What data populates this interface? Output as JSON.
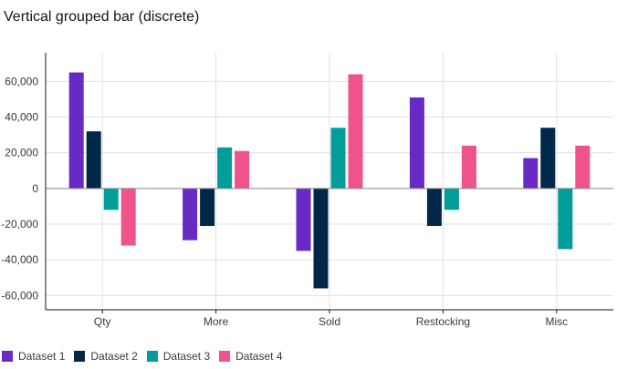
{
  "chart_data": {
    "type": "bar",
    "title": "Vertical grouped bar (discrete)",
    "categories": [
      "Qty",
      "More",
      "Sold",
      "Restocking",
      "Misc"
    ],
    "series": [
      {
        "name": "Dataset 1",
        "color": "#6929c4",
        "values": [
          65000,
          -29000,
          -35000,
          51000,
          17000
        ]
      },
      {
        "name": "Dataset 2",
        "color": "#012749",
        "values": [
          32000,
          -21000,
          -56000,
          -21000,
          34000
        ]
      },
      {
        "name": "Dataset 3",
        "color": "#009d9a",
        "values": [
          -12000,
          23000,
          34000,
          -12000,
          -34000
        ]
      },
      {
        "name": "Dataset 4",
        "color": "#ee538b",
        "values": [
          -32000,
          21000,
          64000,
          24000,
          24000
        ]
      }
    ],
    "y_ticks": [
      "60,000",
      "40,000",
      "20,000",
      "0",
      "-20,000",
      "-40,000",
      "-60,000"
    ],
    "y_tick_values": [
      60000,
      40000,
      20000,
      0,
      -20000,
      -40000,
      -60000
    ],
    "ylim": [
      -68000,
      76000
    ],
    "grid": true,
    "legend_position": "bottom-left",
    "xlabel": "",
    "ylabel": ""
  }
}
